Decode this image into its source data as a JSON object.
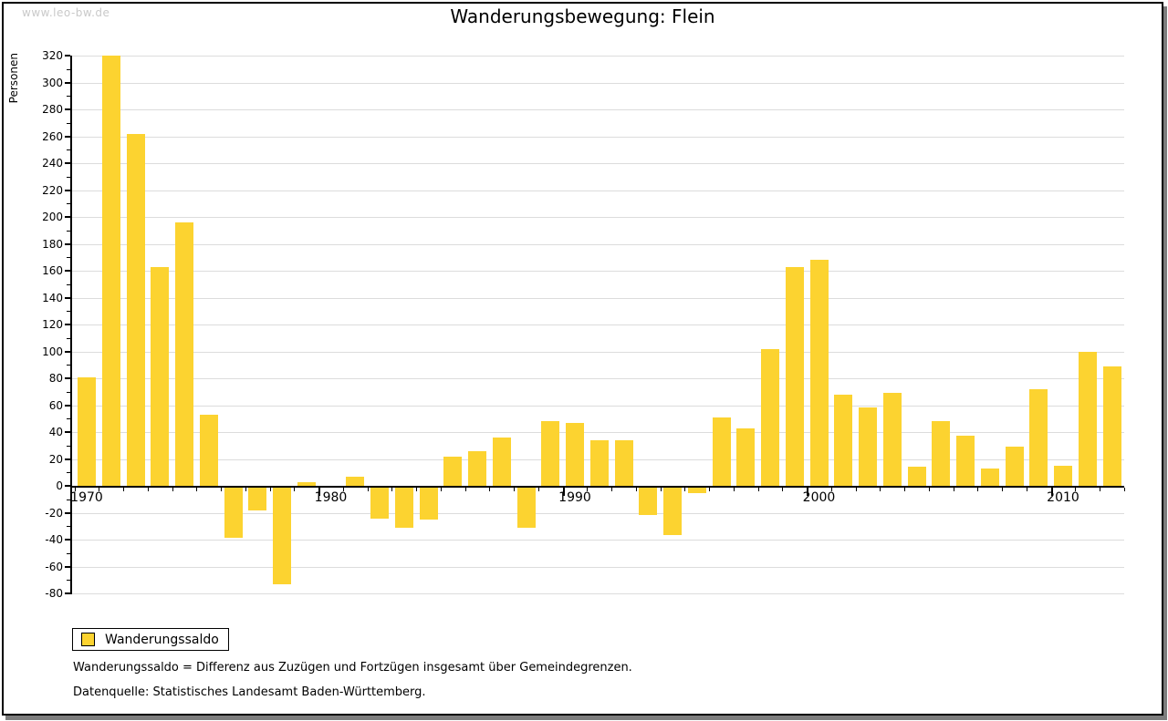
{
  "page": {
    "watermark": "www.leo-bw.de"
  },
  "chart_data": {
    "type": "bar",
    "title": "Wanderungsbewegung: Flein",
    "xlabel": "",
    "ylabel": "Personen",
    "x": [
      1970,
      1971,
      1972,
      1973,
      1974,
      1975,
      1976,
      1977,
      1978,
      1979,
      1980,
      1981,
      1982,
      1983,
      1984,
      1985,
      1986,
      1987,
      1988,
      1989,
      1990,
      1991,
      1992,
      1993,
      1994,
      1995,
      1996,
      1997,
      1998,
      1999,
      2000,
      2001,
      2002,
      2003,
      2004,
      2005,
      2006,
      2007,
      2008,
      2009,
      2010,
      2011,
      2012
    ],
    "series": [
      {
        "name": "Wanderungssaldo",
        "values": [
          81,
          320,
          262,
          163,
          196,
          53,
          -37,
          -17,
          -72,
          3,
          0,
          7,
          -23,
          -30,
          -24,
          22,
          26,
          36,
          -30,
          48,
          47,
          34,
          34,
          -20,
          -35,
          -4,
          51,
          43,
          102,
          163,
          168,
          68,
          58,
          69,
          14,
          48,
          37,
          13,
          29,
          72,
          15,
          100,
          89
        ]
      }
    ],
    "ylim": [
      -80,
      320
    ],
    "ytick_major_step": 20,
    "ytick_minor_step": 10,
    "xtick_labels": [
      "1970",
      "1980",
      "1990",
      "2000",
      "2010"
    ],
    "grid": true,
    "legend_position": "bottom-left",
    "colors": {
      "bar": "#FCD330",
      "grid": "#DCDCDC",
      "axis": "#000000",
      "watermark": "#C9C9C9"
    }
  },
  "legend": {
    "label": "Wanderungssaldo"
  },
  "footer": {
    "definition": "Wanderungssaldo = Differenz aus Zuzügen und Fortzügen insgesamt über Gemeindegrenzen.",
    "source": "Datenquelle: Statistisches Landesamt Baden-Württemberg."
  }
}
